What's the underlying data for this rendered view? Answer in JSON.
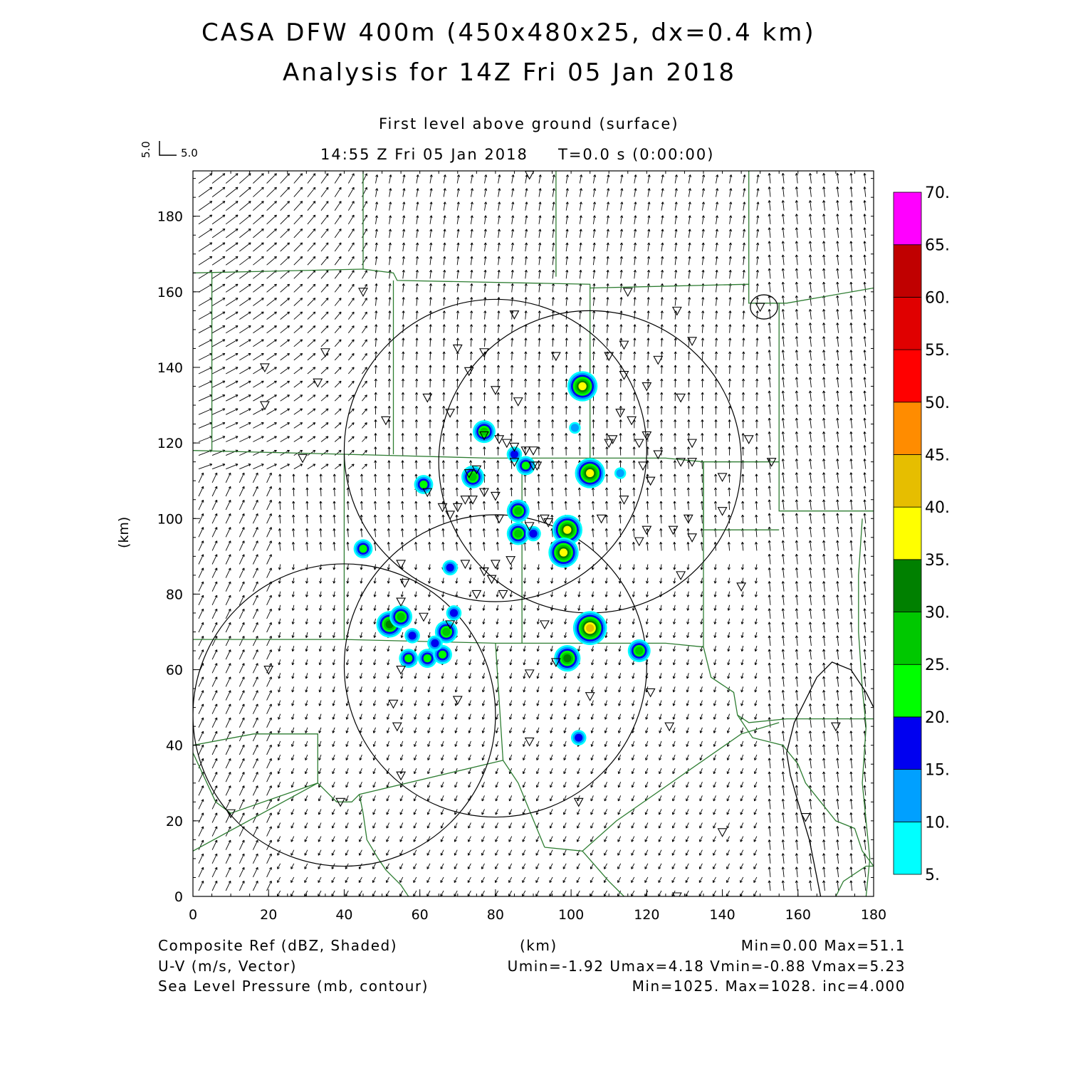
{
  "header": {
    "title_line1": "CASA DFW 400m (450x480x25, dx=0.4 km)",
    "title_line2": "Analysis for 14Z Fri 05 Jan 2018",
    "level": "First level above ground (surface)",
    "valid_time": "14:55 Z Fri 05 Jan 2018",
    "model_time": "T=0.0 s (0:00:00)",
    "ref_vector_u": "5.0",
    "ref_vector_v": "5.0"
  },
  "footer": {
    "field1_name": "Composite Ref (dBZ, Shaded)",
    "field1_stats": "Min=0.00 Max=51.1",
    "field2_name": "U-V (m/s, Vector)",
    "field2_stats": "Umin=-1.92 Umax=4.18 Vmin=-0.88 Vmax=5.23",
    "field3_name": "Sea Level Pressure (mb, contour)",
    "field3_stats": "Min=1025. Max=1028. inc=4.000",
    "xunit": "(km)"
  },
  "colors": {
    "boundary": "#2e7d32",
    "contour": "#000000",
    "vector": "#000000",
    "scale": [
      "#00ffff",
      "#00a0ff",
      "#0000f0",
      "#00ff00",
      "#00c800",
      "#008000",
      "#ffff00",
      "#e6be00",
      "#ff8c00",
      "#ff0000",
      "#e00000",
      "#c00000",
      "#ff00ff"
    ]
  },
  "chart_data": {
    "type": "heatmap",
    "title": "CASA DFW 400m (450x480x25, dx=0.4 km)",
    "xlabel": "(km)",
    "ylabel": "(km)",
    "xlim": [
      0,
      180
    ],
    "ylim": [
      0,
      192
    ],
    "xticks": [
      "0",
      "20",
      "40",
      "60",
      "80",
      "100",
      "120",
      "140",
      "160",
      "180"
    ],
    "yticks": [
      "0",
      "20",
      "40",
      "60",
      "80",
      "100",
      "120",
      "140",
      "160",
      "180"
    ],
    "colorbar": {
      "levels": [
        "5.",
        "10.",
        "15.",
        "20.",
        "25.",
        "30.",
        "35.",
        "40.",
        "45.",
        "50.",
        "55.",
        "60.",
        "65.",
        "70."
      ]
    },
    "radar_range_rings": [
      {
        "cx": 80,
        "cy": 118,
        "r": 40
      },
      {
        "cx": 105,
        "cy": 115,
        "r": 40
      },
      {
        "cx": 40,
        "cy": 48,
        "r": 40
      },
      {
        "cx": 80,
        "cy": 61,
        "r": 40
      }
    ],
    "pressure_contours": [
      {
        "value": "1028",
        "shape": "small-closed",
        "center": [
          151,
          156
        ]
      },
      {
        "value": "1028",
        "shape": "lower-right",
        "center": [
          170,
          40
        ]
      }
    ],
    "reflectivity_cells": [
      {
        "x": 52,
        "y": 72,
        "dbz": 30
      },
      {
        "x": 55,
        "y": 74,
        "dbz": 25
      },
      {
        "x": 57,
        "y": 63,
        "dbz": 20
      },
      {
        "x": 62,
        "y": 63,
        "dbz": 20
      },
      {
        "x": 66,
        "y": 64,
        "dbz": 20
      },
      {
        "x": 67,
        "y": 70,
        "dbz": 25
      },
      {
        "x": 58,
        "y": 69,
        "dbz": 15
      },
      {
        "x": 64,
        "y": 67,
        "dbz": 15
      },
      {
        "x": 45,
        "y": 92,
        "dbz": 20
      },
      {
        "x": 61,
        "y": 109,
        "dbz": 20
      },
      {
        "x": 74,
        "y": 111,
        "dbz": 25
      },
      {
        "x": 77,
        "y": 123,
        "dbz": 25
      },
      {
        "x": 86,
        "y": 102,
        "dbz": 25
      },
      {
        "x": 86,
        "y": 96,
        "dbz": 25
      },
      {
        "x": 88,
        "y": 114,
        "dbz": 20
      },
      {
        "x": 85,
        "y": 117,
        "dbz": 15
      },
      {
        "x": 99,
        "y": 97,
        "dbz": 35
      },
      {
        "x": 98,
        "y": 91,
        "dbz": 35
      },
      {
        "x": 103,
        "y": 135,
        "dbz": 35
      },
      {
        "x": 105,
        "y": 112,
        "dbz": 35
      },
      {
        "x": 105,
        "y": 71,
        "dbz": 40
      },
      {
        "x": 99,
        "y": 63,
        "dbz": 30
      },
      {
        "x": 118,
        "y": 65,
        "dbz": 25
      },
      {
        "x": 102,
        "y": 42,
        "dbz": 15
      },
      {
        "x": 68,
        "y": 87,
        "dbz": 15
      },
      {
        "x": 69,
        "y": 75,
        "dbz": 15
      },
      {
        "x": 101,
        "y": 124,
        "dbz": 10
      },
      {
        "x": 113,
        "y": 112,
        "dbz": 10
      },
      {
        "x": 90,
        "y": 96,
        "dbz": 15
      }
    ]
  }
}
